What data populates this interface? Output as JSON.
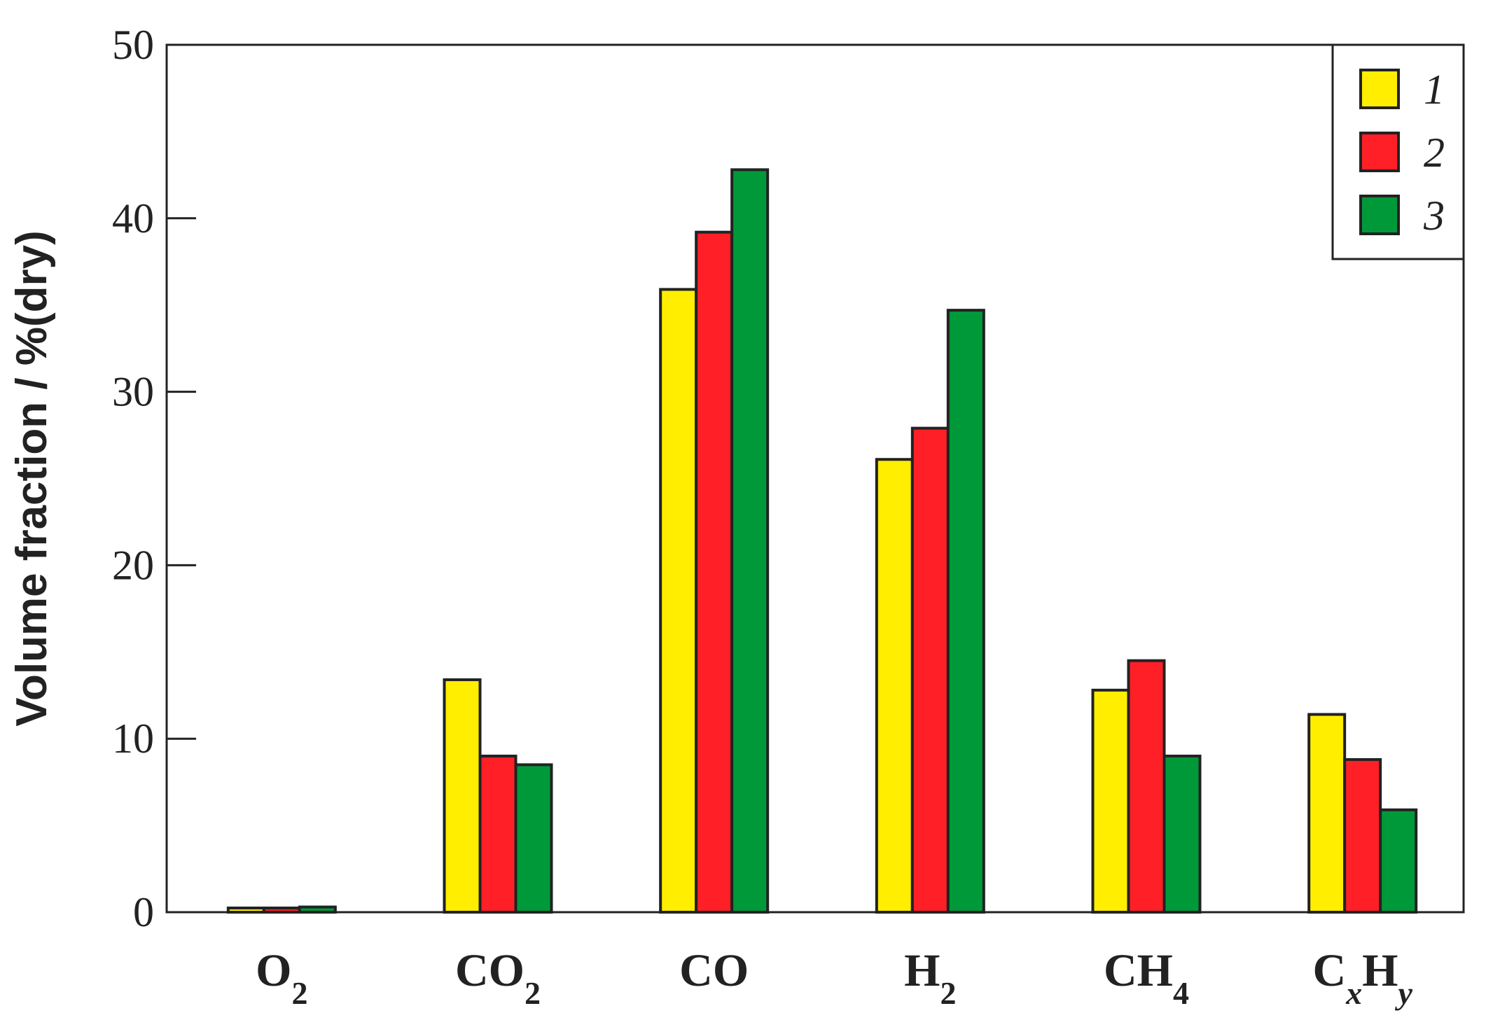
{
  "chart_data": {
    "type": "bar",
    "ylabel": "Volume fraction / %(dry)",
    "xlabel": "",
    "title": "",
    "ylim": [
      0,
      50
    ],
    "yticks": [
      0,
      10,
      20,
      30,
      40,
      50
    ],
    "legend_position": "top-right",
    "categories": [
      {
        "main": "O",
        "sub": "2",
        "text": "O2"
      },
      {
        "main": "CO",
        "sub": "2",
        "text": "CO2"
      },
      {
        "main": "CO",
        "sub": "",
        "text": "CO"
      },
      {
        "main": "H",
        "sub": "2",
        "text": "H2"
      },
      {
        "main": "CH",
        "sub": "4",
        "text": "CH4"
      },
      {
        "main": "C",
        "sub": "x",
        "main2": "H",
        "sub2": "y",
        "text": "CxHy"
      }
    ],
    "series": [
      {
        "name": "1",
        "color": "#ffee00",
        "values": [
          0.1,
          13.4,
          35.9,
          26.1,
          12.8,
          11.4
        ]
      },
      {
        "name": "2",
        "color": "#ff1f26",
        "values": [
          0.2,
          9.0,
          39.2,
          27.9,
          14.5,
          8.8
        ]
      },
      {
        "name": "3",
        "color": "#00993a",
        "values": [
          0.3,
          8.5,
          42.8,
          34.7,
          9.0,
          5.9
        ]
      }
    ]
  }
}
